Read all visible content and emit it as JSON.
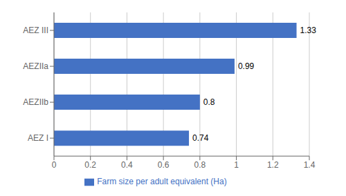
{
  "chart_data": {
    "type": "bar",
    "orientation": "horizontal",
    "categories": [
      "AEZ I",
      "AEZIIb",
      "AEZIIa",
      "AEZ III"
    ],
    "series": [
      {
        "name": "Farm size per adult equivalent (Ha)",
        "color": "#4472c4",
        "values": [
          0.74,
          0.8,
          0.99,
          1.33
        ]
      }
    ],
    "xlim": [
      0,
      1.4
    ],
    "xticks": [
      0,
      0.2,
      0.4,
      0.6,
      0.8,
      1,
      1.2,
      1.4
    ],
    "grid": true,
    "legend": "bottom",
    "data_labels": true
  }
}
